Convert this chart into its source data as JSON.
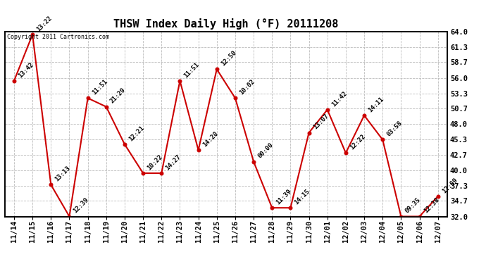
{
  "title": "THSW Index Daily High (°F) 20111208",
  "copyright_text": "Copyright 2011 Cartronics.com",
  "dates": [
    "11/14",
    "11/15",
    "11/16",
    "11/17",
    "11/18",
    "11/19",
    "11/20",
    "11/21",
    "11/22",
    "11/23",
    "11/24",
    "11/25",
    "11/26",
    "11/27",
    "11/28",
    "11/29",
    "11/30",
    "12/01",
    "12/02",
    "12/03",
    "12/04",
    "12/05",
    "12/06",
    "12/07"
  ],
  "values": [
    55.5,
    63.5,
    37.5,
    32.0,
    52.5,
    51.0,
    44.5,
    39.5,
    39.5,
    55.5,
    43.5,
    57.5,
    52.5,
    41.5,
    33.5,
    33.5,
    46.5,
    50.5,
    43.0,
    49.5,
    45.3,
    32.0,
    32.0,
    35.5
  ],
  "annotations": [
    "13:42",
    "13:22",
    "13:13",
    "12:39",
    "11:51",
    "21:29",
    "12:21",
    "10:22",
    "14:27",
    "11:51",
    "14:28",
    "12:50",
    "10:02",
    "00:00",
    "11:39",
    "14:15",
    "13:07",
    "11:42",
    "12:22",
    "14:11",
    "03:58",
    "09:35",
    "12:38",
    "12:09"
  ],
  "ylim": [
    32.0,
    64.0
  ],
  "yticks": [
    32.0,
    34.7,
    37.3,
    40.0,
    42.7,
    45.3,
    48.0,
    50.7,
    53.3,
    56.0,
    58.7,
    61.3,
    64.0
  ],
  "line_color": "#cc0000",
  "marker_color": "#cc0000",
  "bg_color": "#ffffff",
  "grid_color": "#bbbbbb",
  "title_fontsize": 11,
  "annotation_fontsize": 6.5,
  "tick_fontsize": 7.5
}
